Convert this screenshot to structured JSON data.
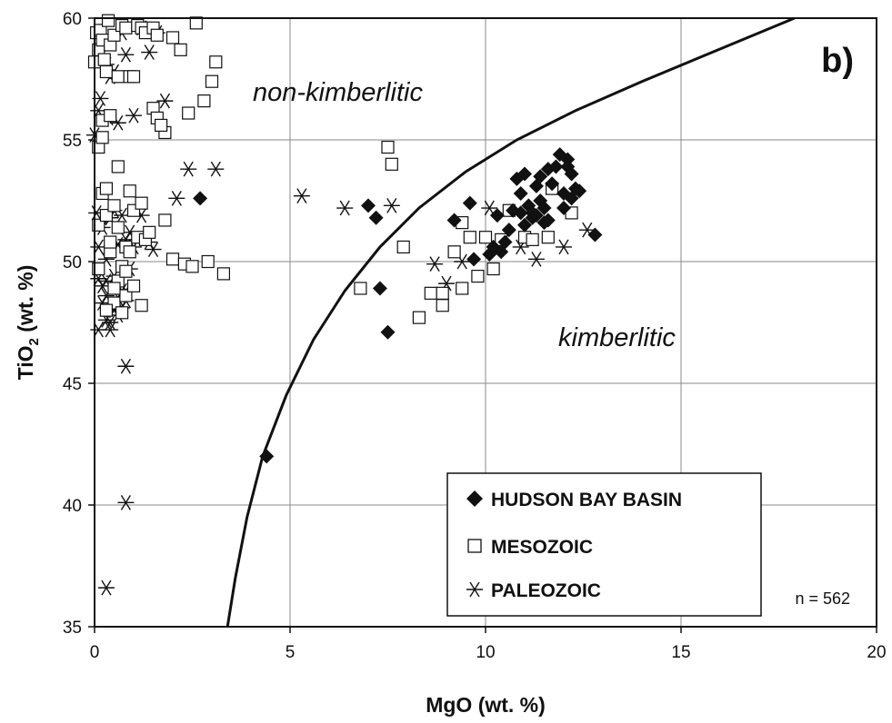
{
  "chart_data": {
    "type": "scatter",
    "panel_label": "b)",
    "xlabel": "MgO (wt. %)",
    "ylabel_main": "TiO",
    "ylabel_sub": "2",
    "ylabel_rest": " (wt. %)",
    "xlim": [
      0,
      20
    ],
    "ylim": [
      35,
      60
    ],
    "x_ticks": [
      "0",
      "5",
      "10",
      "15",
      "20"
    ],
    "y_ticks": [
      "35",
      "40",
      "45",
      "50",
      "55",
      "60"
    ],
    "x_tick_values": [
      0,
      5,
      10,
      15,
      20
    ],
    "y_tick_values": [
      35,
      40,
      45,
      50,
      55,
      60
    ],
    "grid": true,
    "legend_position": "bottom-right",
    "annotations": {
      "upper_region": "non-kimberlitic",
      "lower_region": "kimberlitic",
      "count": "n = 562"
    },
    "boundary_curve": [
      [
        3.4,
        35
      ],
      [
        3.6,
        37
      ],
      [
        3.9,
        39.5
      ],
      [
        4.3,
        42
      ],
      [
        4.9,
        44.5
      ],
      [
        5.6,
        46.8
      ],
      [
        6.4,
        48.8
      ],
      [
        7.3,
        50.6
      ],
      [
        8.3,
        52.2
      ],
      [
        9.5,
        53.7
      ],
      [
        10.8,
        55
      ],
      [
        12.3,
        56.2
      ],
      [
        14,
        57.4
      ],
      [
        15.8,
        58.6
      ],
      [
        17.9,
        60
      ]
    ],
    "series": [
      {
        "name": "HUDSON BAY BASIN",
        "marker": "filled-diamond",
        "x": [
          2.7,
          4.4,
          7.0,
          7.2,
          7.3,
          7.5,
          9.2,
          9.6,
          9.7,
          10.1,
          10.2,
          10.3,
          10.5,
          10.6,
          10.7,
          10.8,
          10.9,
          10.9,
          11.0,
          11.0,
          11.1,
          11.2,
          11.3,
          11.3,
          11.4,
          11.4,
          11.5,
          11.5,
          11.6,
          11.7,
          11.8,
          11.9,
          12.0,
          12.0,
          12.1,
          12.1,
          12.2,
          12.2,
          12.3,
          12.4,
          12.8,
          10.4,
          11.2,
          11.6
        ],
        "y": [
          52.6,
          42.0,
          52.3,
          51.8,
          48.9,
          47.1,
          51.7,
          52.4,
          50.1,
          50.3,
          50.6,
          51.9,
          50.8,
          51.3,
          52.1,
          53.4,
          52.8,
          52.0,
          53.6,
          51.5,
          52.3,
          51.8,
          53.1,
          51.9,
          52.5,
          53.5,
          51.6,
          52.2,
          53.8,
          53.2,
          53.9,
          54.4,
          52.8,
          52.2,
          54.2,
          53.9,
          53.6,
          52.6,
          53.0,
          52.9,
          51.1,
          50.4,
          52.0,
          51.7
        ]
      },
      {
        "name": "MESOZOIC",
        "marker": "open-square",
        "x": [
          0.0,
          0.05,
          0.1,
          0.15,
          0.2,
          0.25,
          0.3,
          0.35,
          0.4,
          0.5,
          0.6,
          0.7,
          0.8,
          0.9,
          1.0,
          1.1,
          1.2,
          1.3,
          1.5,
          1.6,
          1.8,
          2.0,
          2.2,
          2.4,
          2.6,
          2.8,
          3.0,
          3.1,
          0.1,
          0.2,
          0.3,
          0.4,
          0.5,
          0.6,
          0.7,
          0.8,
          0.9,
          1.0,
          1.1,
          1.2,
          1.3,
          1.4,
          1.5,
          1.6,
          1.7,
          1.8,
          2.0,
          2.3,
          2.5,
          2.9,
          3.3,
          0.1,
          0.2,
          0.3,
          0.4,
          0.5,
          0.6,
          0.8,
          1.0,
          1.2,
          0.1,
          0.3,
          0.5,
          0.7,
          0.9,
          0.2,
          0.4,
          0.6,
          0.8,
          6.8,
          7.5,
          7.6,
          7.9,
          8.3,
          8.6,
          8.9,
          8.9,
          9.2,
          9.4,
          9.4,
          9.6,
          9.8,
          10.0,
          10.2,
          10.4,
          10.6,
          11.0,
          11.2,
          11.6,
          11.7,
          12.2
        ],
        "y": [
          58.2,
          59.4,
          58.7,
          59.5,
          59.1,
          58.3,
          57.8,
          59.9,
          58.9,
          59.3,
          57.6,
          59.7,
          59.6,
          57.6,
          57.6,
          59.7,
          59.6,
          59.4,
          59.6,
          59.3,
          55.3,
          59.2,
          58.7,
          56.1,
          59.8,
          56.6,
          57.4,
          58.2,
          51.5,
          52.8,
          51.9,
          50.4,
          52.3,
          51.4,
          49.8,
          50.6,
          52.9,
          52.1,
          51.0,
          52.4,
          50.9,
          51.2,
          56.3,
          55.9,
          55.6,
          51.7,
          50.1,
          49.9,
          49.8,
          50.0,
          49.5,
          54.7,
          55.1,
          53.0,
          50.8,
          48.3,
          49.2,
          48.6,
          49.0,
          48.2,
          49.7,
          48.0,
          48.9,
          47.9,
          50.4,
          55.8,
          56.0,
          53.9,
          49.6,
          48.9,
          54.7,
          54.0,
          50.6,
          47.7,
          48.7,
          48.2,
          48.7,
          50.4,
          51.6,
          48.9,
          51.0,
          49.4,
          51.0,
          49.7,
          50.9,
          52.1,
          51.0,
          50.9,
          51.0,
          53.0,
          52.0
        ]
      },
      {
        "name": "PALEOZOIC",
        "marker": "asterisk",
        "x": [
          0.0,
          0.1,
          0.15,
          0.2,
          0.25,
          0.3,
          0.35,
          0.4,
          0.5,
          0.6,
          0.7,
          0.8,
          1.0,
          1.2,
          1.4,
          1.6,
          1.8,
          2.1,
          2.4,
          3.1,
          0.05,
          0.1,
          0.2,
          0.3,
          0.4,
          0.5,
          0.6,
          0.7,
          0.8,
          0.9,
          1.0,
          1.2,
          1.4,
          1.5,
          0.1,
          0.2,
          0.3,
          0.4,
          0.5,
          0.6,
          0.7,
          0.8,
          0.9,
          0.1,
          0.2,
          0.3,
          0.4,
          0.6,
          0.8,
          0.3,
          0.5,
          0.7,
          0.8,
          0.3,
          0.8,
          5.3,
          6.4,
          7.6,
          8.7,
          9.0,
          9.4,
          10.1,
          10.9,
          11.3,
          12.0,
          12.6
        ],
        "y": [
          55.2,
          56.2,
          56.7,
          58.5,
          59.0,
          58.1,
          55.9,
          57.6,
          57.8,
          55.7,
          59.4,
          58.5,
          56.0,
          59.6,
          58.6,
          59.4,
          56.6,
          52.6,
          53.8,
          53.8,
          52.0,
          50.6,
          51.4,
          50.1,
          51.8,
          52.1,
          50.7,
          51.9,
          50.9,
          51.2,
          50.6,
          51.9,
          50.8,
          50.5,
          49.3,
          49.0,
          48.6,
          47.5,
          48.0,
          47.8,
          48.1,
          48.4,
          49.7,
          47.2,
          48.3,
          47.6,
          47.2,
          48.5,
          45.7,
          49.2,
          49.4,
          48.8,
          40.1,
          36.6,
          48.8,
          52.7,
          52.2,
          52.3,
          49.9,
          49.1,
          50.0,
          52.2,
          50.6,
          50.1,
          50.6,
          51.3
        ]
      }
    ]
  }
}
